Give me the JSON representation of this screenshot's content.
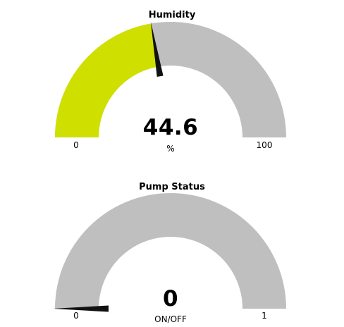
{
  "humidity_gauge": {
    "title": "Humidity",
    "value": "44.6",
    "unit": "%",
    "min": "0",
    "max": "100",
    "fraction": 0.446,
    "fill_color": "#cfe000",
    "track_color": "#bfbfbf",
    "needle_color": "#111111"
  },
  "pump_gauge": {
    "title": "Pump Status",
    "value": "0",
    "unit": "ON/OFF",
    "min": "0",
    "max": "1",
    "fraction": 0,
    "fill_color": "#cfe000",
    "track_color": "#bfbfbf",
    "needle_color": "#111111"
  }
}
